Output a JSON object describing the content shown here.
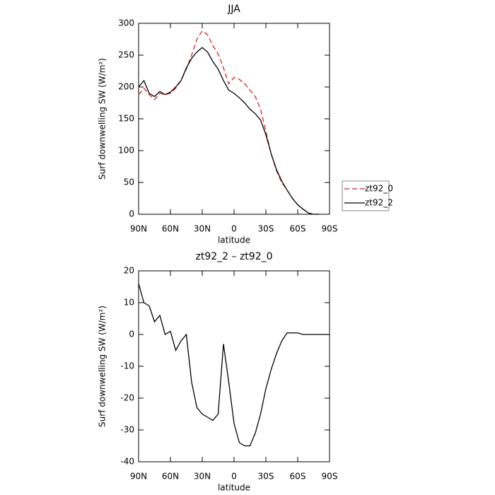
{
  "chart_data": [
    {
      "type": "line",
      "title": "JJA",
      "xlabel": "latitude",
      "ylabel": "Surf downwelling SW (W/m²)",
      "x": [
        90,
        85,
        80,
        75,
        70,
        65,
        60,
        55,
        50,
        45,
        40,
        35,
        30,
        25,
        20,
        15,
        10,
        5,
        0,
        -5,
        -10,
        -15,
        -20,
        -25,
        -30,
        -35,
        -40,
        -45,
        -50,
        -55,
        -60,
        -65,
        -70,
        -75,
        -80,
        -85,
        -90
      ],
      "series": [
        {
          "name": "zt92_0",
          "color": "#e41a1c",
          "dashed": true,
          "values": [
            188,
            198,
            188,
            180,
            190,
            188,
            190,
            198,
            210,
            228,
            250,
            275,
            288,
            282,
            265,
            252,
            230,
            205,
            215,
            212,
            205,
            195,
            185,
            165,
            130,
            95,
            68,
            50,
            38,
            25,
            15,
            8,
            2,
            0,
            0,
            null,
            null
          ]
        },
        {
          "name": "zt92_2",
          "color": "#000000",
          "dashed": false,
          "values": [
            200,
            210,
            190,
            185,
            193,
            188,
            192,
            200,
            210,
            230,
            245,
            255,
            262,
            255,
            240,
            228,
            210,
            195,
            190,
            183,
            175,
            165,
            158,
            148,
            125,
            95,
            70,
            52,
            38,
            25,
            15,
            8,
            2,
            0,
            0,
            null,
            null
          ]
        }
      ],
      "xlim": [
        90,
        -90
      ],
      "xticks": [
        {
          "value": 90,
          "label": "90N"
        },
        {
          "value": 60,
          "label": "60N"
        },
        {
          "value": 30,
          "label": "30N"
        },
        0,
        {
          "value": -30,
          "label": "30S"
        },
        {
          "value": -60,
          "label": "60S"
        },
        {
          "value": -90,
          "label": "90S"
        }
      ],
      "ylim": [
        0,
        300
      ],
      "yticks": [
        0,
        50,
        100,
        150,
        200,
        250,
        300
      ],
      "legend": "right"
    },
    {
      "type": "line",
      "title": "zt92_2 – zt92_0",
      "xlabel": "latitude",
      "ylabel": "Surf downwelling SW (W/m²)",
      "x": [
        90,
        85,
        80,
        75,
        70,
        65,
        60,
        55,
        50,
        45,
        40,
        35,
        30,
        25,
        20,
        15,
        10,
        5,
        0,
        -5,
        -10,
        -15,
        -20,
        -25,
        -30,
        -35,
        -40,
        -45,
        -50,
        -55,
        -60,
        -65,
        -70,
        -75,
        -80,
        -85,
        -90
      ],
      "series": [
        {
          "color": "#000000",
          "dashed": false,
          "values": [
            16,
            10,
            9,
            4,
            6,
            0,
            1,
            -5,
            -2,
            0,
            -15,
            -23,
            -25,
            -26,
            -27,
            -25,
            -3,
            -15,
            -28,
            -34,
            -35,
            -35,
            -31,
            -25,
            -17,
            -11,
            -6,
            -2,
            0.5,
            0.5,
            0.5,
            0,
            0,
            0,
            0,
            0,
            0
          ]
        }
      ],
      "xlim": [
        90,
        -90
      ],
      "xticks": [
        {
          "value": 90,
          "label": "90N"
        },
        {
          "value": 60,
          "label": "60N"
        },
        {
          "value": 30,
          "label": "30N"
        },
        0,
        {
          "value": -30,
          "label": "30S"
        },
        {
          "value": -60,
          "label": "60S"
        },
        {
          "value": -90,
          "label": "90S"
        }
      ],
      "ylim": [
        -40,
        20
      ],
      "yticks": [
        -40,
        -30,
        -20,
        -10,
        0,
        10,
        20
      ]
    }
  ]
}
